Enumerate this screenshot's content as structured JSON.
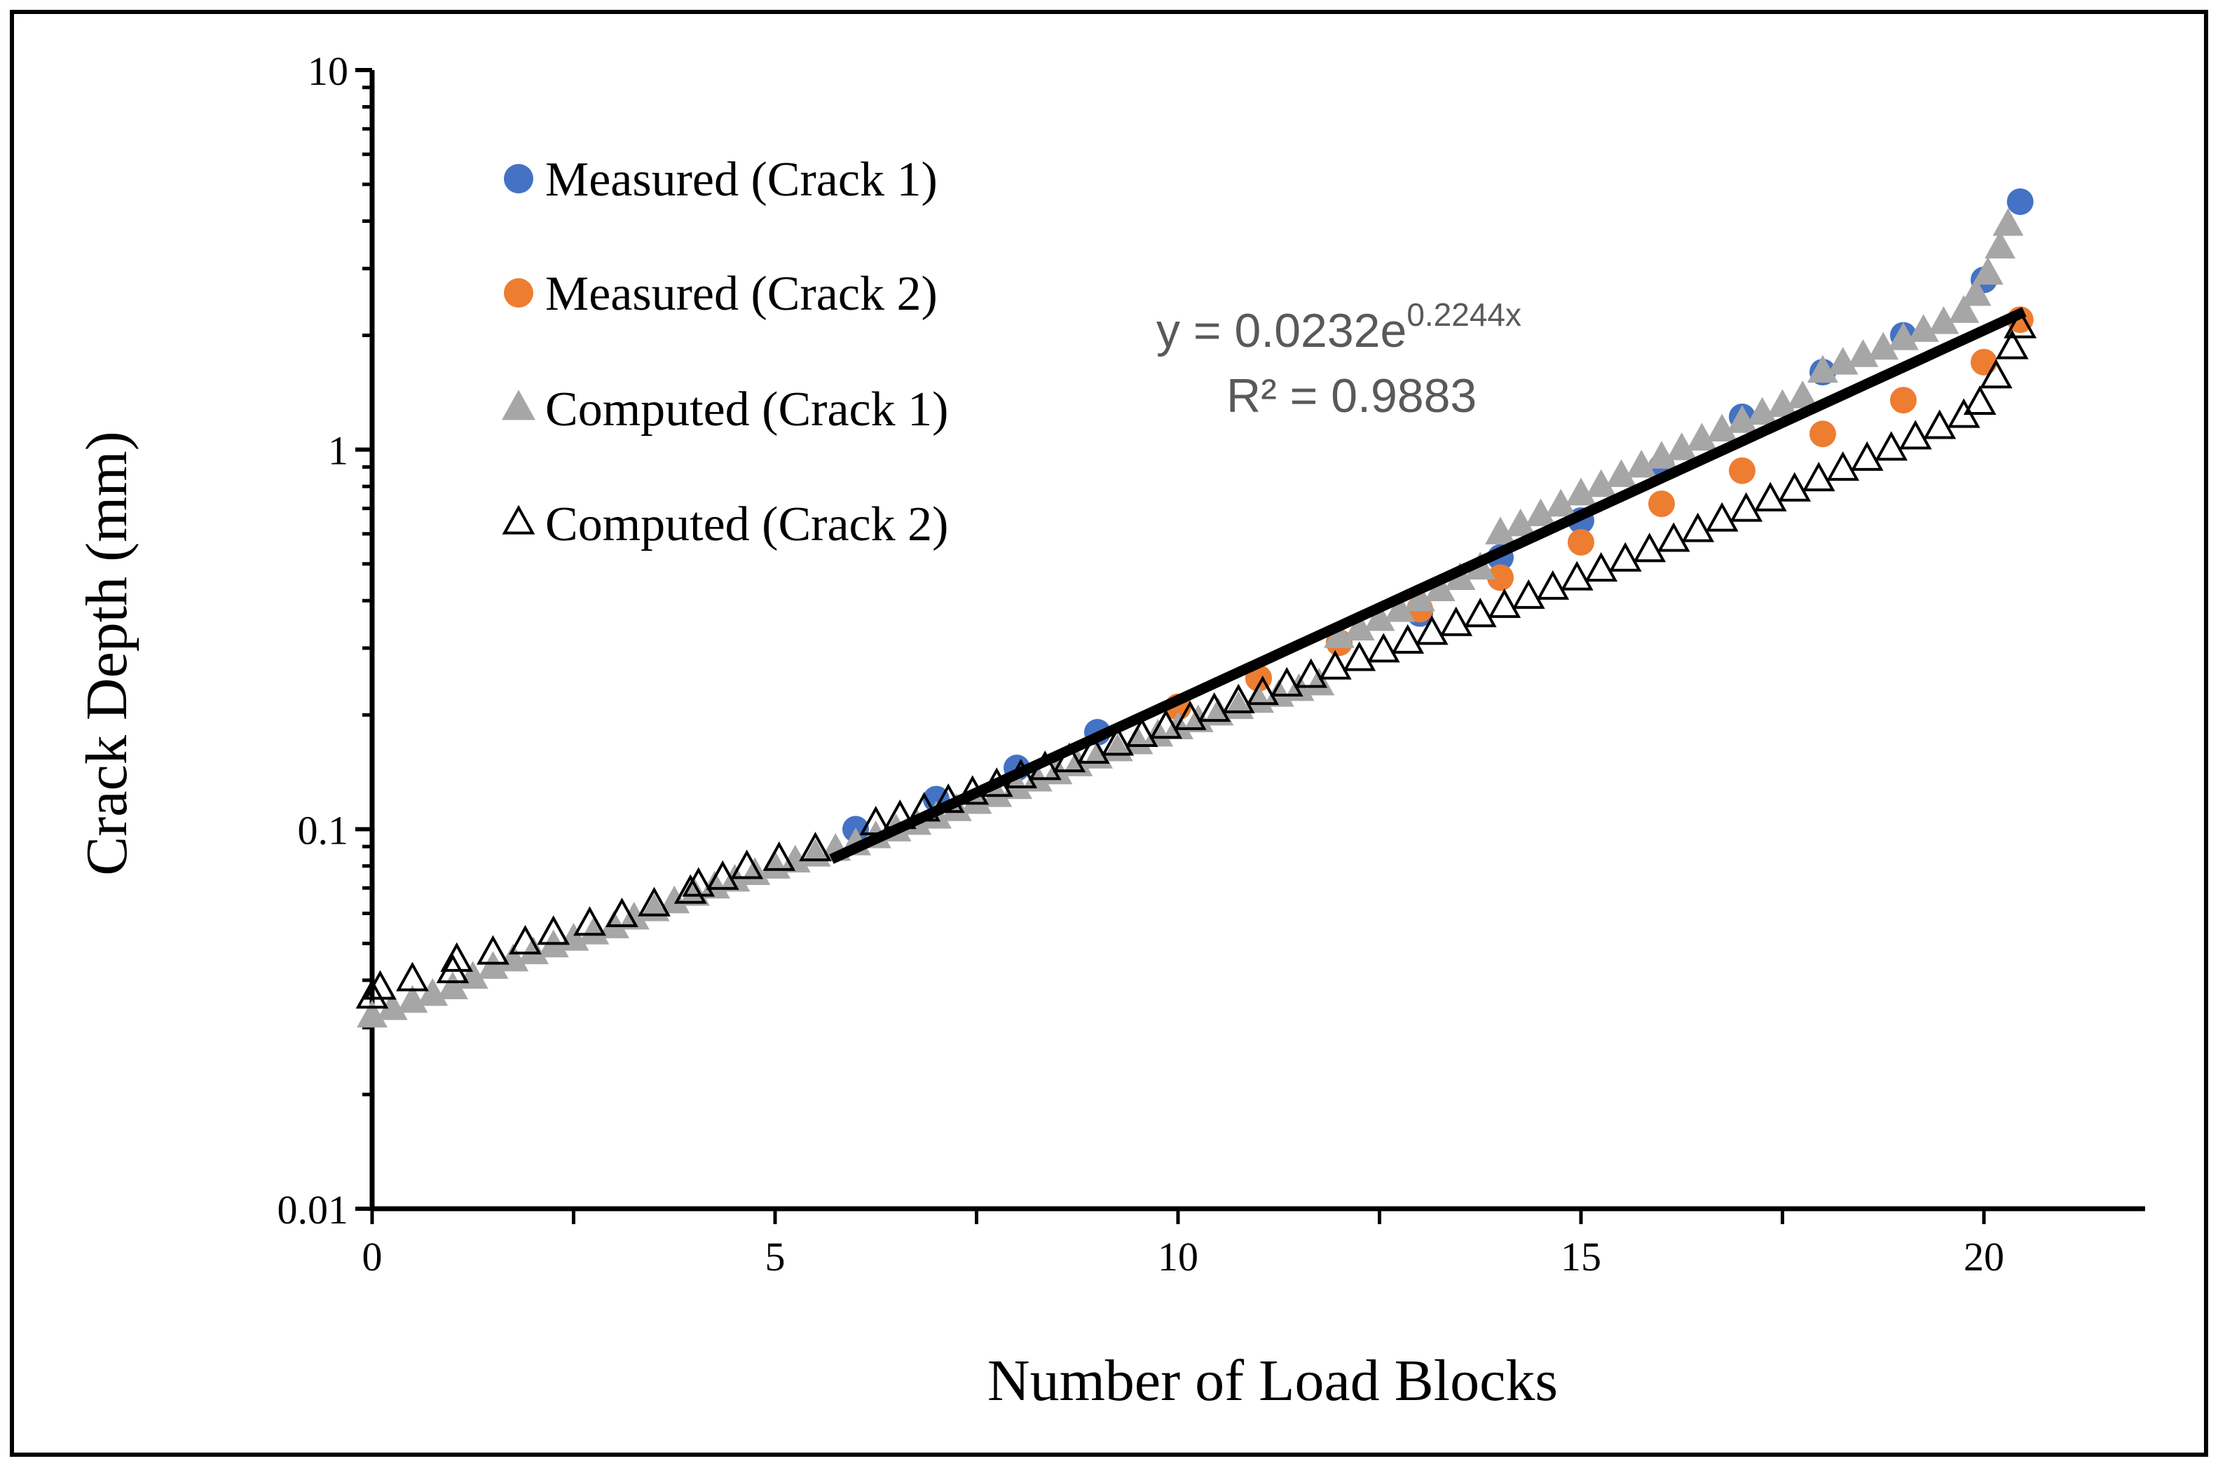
{
  "chart_data": {
    "type": "scatter",
    "xlabel": "Number of Load Blocks",
    "ylabel": "Crack Depth (mm)",
    "x_axis": {
      "min": 0,
      "max": 22,
      "ticks": [
        0,
        5,
        10,
        15,
        20
      ],
      "tick_labels": [
        "0",
        "5",
        "10",
        "15",
        "20"
      ],
      "minor_step": 2.5
    },
    "y_axis": {
      "scale": "log",
      "min": 0.01,
      "max": 10,
      "ticks": [
        0.01,
        0.1,
        1,
        10
      ],
      "tick_labels": [
        "0.01",
        "0.1",
        "1",
        "10"
      ]
    },
    "legend": {
      "position": "top-left",
      "entries": [
        {
          "label": "Measured (Crack 1)",
          "marker": "circle",
          "color": "#4472c4"
        },
        {
          "label": "Measured (Crack 2)",
          "marker": "circle",
          "color": "#ed7d31"
        },
        {
          "label": "Computed (Crack 1)",
          "marker": "triangle-filled",
          "color": "#a6a6a6"
        },
        {
          "label": "Computed (Crack 2)",
          "marker": "triangle-open",
          "color": "#000000"
        }
      ]
    },
    "series": [
      {
        "name": "Measured (Crack 1)",
        "x": [
          6,
          7,
          8,
          9,
          10,
          11,
          12,
          13,
          14,
          15,
          16,
          17,
          18,
          19,
          20,
          20.45
        ],
        "y": [
          0.1,
          0.12,
          0.145,
          0.18,
          0.21,
          0.25,
          0.31,
          0.37,
          0.52,
          0.65,
          0.9,
          1.22,
          1.6,
          2.0,
          2.8,
          4.5
        ]
      },
      {
        "name": "Measured (Crack 2)",
        "x": [
          10,
          11,
          12,
          13,
          14,
          15,
          16,
          17,
          18,
          19,
          20,
          20.45
        ],
        "y": [
          0.21,
          0.25,
          0.31,
          0.38,
          0.46,
          0.57,
          0.72,
          0.88,
          1.1,
          1.35,
          1.7,
          2.2
        ]
      },
      {
        "name": "Computed (Crack 1)",
        "x": [
          0,
          0.25,
          0.5,
          0.75,
          1,
          1.25,
          1.5,
          1.75,
          2,
          2.25,
          2.5,
          2.75,
          3,
          3.25,
          3.5,
          3.75,
          4,
          4.25,
          4.5,
          4.75,
          5,
          5.25,
          5.5,
          5.75,
          6,
          6.25,
          6.5,
          6.75,
          7,
          7.25,
          7.5,
          7.75,
          8,
          8.25,
          8.5,
          8.75,
          9,
          9.25,
          9.5,
          9.75,
          10,
          10.25,
          10.5,
          10.75,
          11,
          11.25,
          11.5,
          11.75,
          12,
          12.25,
          12.5,
          12.75,
          13,
          13.25,
          13.5,
          13.75,
          14,
          14.25,
          14.5,
          14.75,
          15,
          15.25,
          15.5,
          15.75,
          16,
          16.25,
          16.5,
          16.75,
          17,
          17.25,
          17.5,
          17.75,
          18,
          18.25,
          18.5,
          18.75,
          19,
          19.25,
          19.5,
          19.75,
          19.9,
          20.05,
          20.2,
          20.3
        ],
        "y": [
          0.032,
          0.0335,
          0.035,
          0.0365,
          0.038,
          0.0405,
          0.043,
          0.045,
          0.047,
          0.049,
          0.051,
          0.053,
          0.055,
          0.058,
          0.061,
          0.064,
          0.067,
          0.07,
          0.073,
          0.076,
          0.079,
          0.082,
          0.085,
          0.088,
          0.091,
          0.095,
          0.099,
          0.103,
          0.107,
          0.112,
          0.117,
          0.122,
          0.128,
          0.134,
          0.14,
          0.147,
          0.154,
          0.161,
          0.168,
          0.176,
          0.184,
          0.192,
          0.2,
          0.208,
          0.216,
          0.224,
          0.232,
          0.24,
          0.32,
          0.335,
          0.355,
          0.375,
          0.4,
          0.425,
          0.455,
          0.485,
          0.6,
          0.63,
          0.67,
          0.71,
          0.76,
          0.8,
          0.85,
          0.9,
          0.95,
          1.0,
          1.06,
          1.12,
          1.18,
          1.24,
          1.3,
          1.37,
          1.6,
          1.68,
          1.76,
          1.84,
          1.95,
          2.05,
          2.15,
          2.3,
          2.55,
          2.9,
          3.4,
          3.9
        ]
      },
      {
        "name": "Computed (Crack 2)",
        "x": [
          0,
          0.1,
          0.5,
          1,
          1.05,
          1.5,
          1.9,
          2.25,
          2.7,
          3.1,
          3.5,
          3.95,
          4.05,
          4.35,
          4.65,
          5.05,
          5.5,
          6.25,
          6.55,
          6.85,
          7.15,
          7.45,
          7.75,
          8.05,
          8.35,
          8.65,
          8.95,
          9.25,
          9.55,
          9.85,
          10.15,
          10.45,
          10.75,
          11.05,
          11.35,
          11.65,
          11.95,
          12.25,
          12.55,
          12.85,
          13.15,
          13.45,
          13.75,
          14.05,
          14.35,
          14.65,
          14.95,
          15.25,
          15.55,
          15.85,
          16.15,
          16.45,
          16.75,
          17.05,
          17.35,
          17.65,
          17.95,
          18.25,
          18.55,
          18.85,
          19.15,
          19.45,
          19.75,
          19.95,
          20.15,
          20.35,
          20.45
        ],
        "y": [
          0.036,
          0.038,
          0.04,
          0.042,
          0.045,
          0.047,
          0.05,
          0.053,
          0.056,
          0.059,
          0.063,
          0.068,
          0.071,
          0.074,
          0.079,
          0.083,
          0.088,
          0.103,
          0.107,
          0.112,
          0.118,
          0.124,
          0.13,
          0.137,
          0.144,
          0.151,
          0.159,
          0.167,
          0.176,
          0.185,
          0.195,
          0.205,
          0.216,
          0.227,
          0.239,
          0.252,
          0.265,
          0.279,
          0.294,
          0.31,
          0.327,
          0.345,
          0.364,
          0.385,
          0.407,
          0.43,
          0.455,
          0.48,
          0.51,
          0.54,
          0.575,
          0.61,
          0.65,
          0.69,
          0.735,
          0.78,
          0.83,
          0.885,
          0.94,
          1.0,
          1.07,
          1.14,
          1.22,
          1.32,
          1.55,
          1.85,
          2.1
        ]
      }
    ],
    "trendline": {
      "type": "exponential",
      "a": 0.0232,
      "b": 0.2244,
      "x_start": 5.7,
      "x_end": 20.5,
      "equation_prefix": "y = 0.0232e",
      "equation_exponent": "0.2244x",
      "r_squared_label": "R² = 0.9883"
    }
  }
}
